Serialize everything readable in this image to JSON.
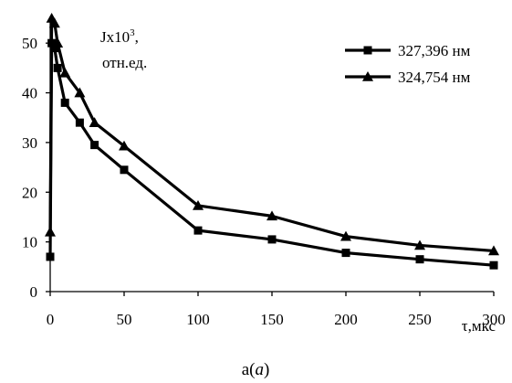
{
  "chart_data": {
    "type": "line",
    "ylabel": "Jx10",
    "ylabel_sup": "3",
    "ylabel_line2": "отн.ед.",
    "xlabel": "τ,мкс",
    "caption": "а(",
    "caption_italic": "a",
    "caption_end": ")",
    "xlim": [
      0,
      300
    ],
    "ylim": [
      0,
      55
    ],
    "xticks": [
      0,
      50,
      100,
      150,
      200,
      250,
      300
    ],
    "yticks": [
      0,
      10,
      20,
      30,
      40,
      50
    ],
    "grid": false,
    "legend_position": "top-right",
    "series": [
      {
        "name": "327,396 нм",
        "marker": "square",
        "color": "#000000",
        "x": [
          0,
          1,
          3,
          5,
          10,
          20,
          30,
          50,
          100,
          150,
          200,
          250,
          300
        ],
        "y": [
          7,
          50,
          49,
          45,
          38,
          34,
          29.5,
          24.5,
          12.3,
          10.5,
          7.8,
          6.5,
          5.3
        ]
      },
      {
        "name": "324,754 нм",
        "marker": "triangle",
        "color": "#000000",
        "x": [
          0,
          1,
          3,
          5,
          10,
          20,
          30,
          50,
          100,
          150,
          200,
          250,
          300
        ],
        "y": [
          12,
          55,
          54,
          50,
          44,
          40,
          34,
          29.3,
          17.3,
          15.2,
          11.1,
          9.3,
          8.2
        ]
      }
    ]
  }
}
